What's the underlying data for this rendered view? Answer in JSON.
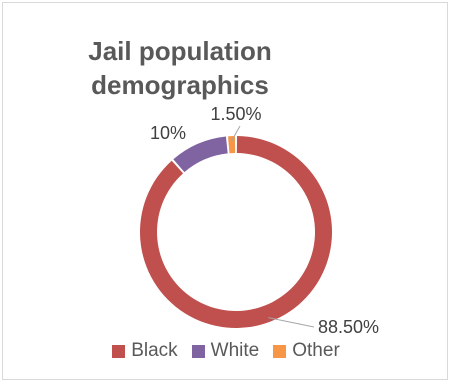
{
  "chart_data": {
    "type": "pie",
    "style": "doughnut",
    "title": "Jail population demographics",
    "categories": [
      "Black",
      "White",
      "Other"
    ],
    "values": [
      88.5,
      10,
      1.5
    ],
    "data_labels": [
      "88.50%",
      "10%",
      "1.50%"
    ],
    "colors": [
      "#c0504d",
      "#8064a2",
      "#f79646"
    ],
    "legend_position": "bottom"
  }
}
